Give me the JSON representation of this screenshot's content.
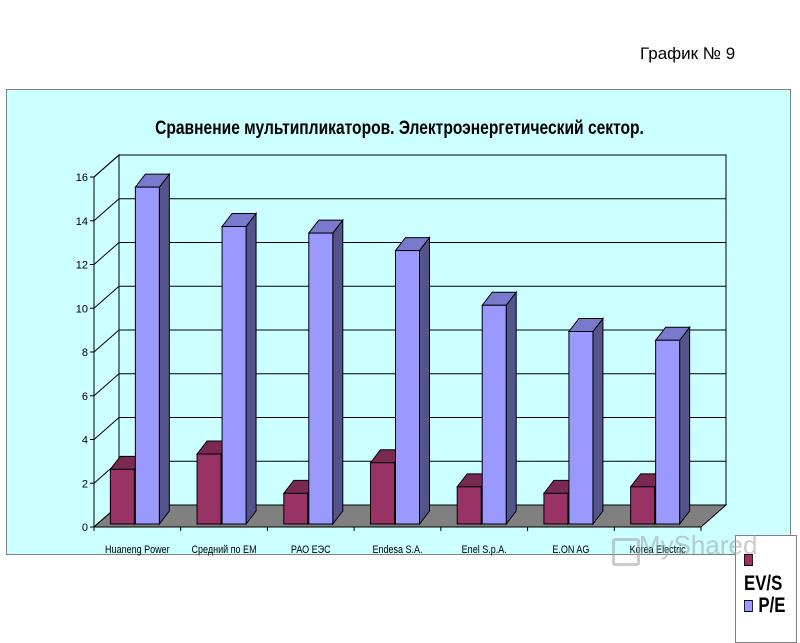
{
  "doc_label": "График № 9",
  "watermark": "MyShared",
  "chart_data": {
    "type": "bar",
    "title": "Сравнение мультипликаторов. Электроэнергетический сектор.",
    "categories": [
      "Huaneng Power",
      "Средний по EM",
      "РАО ЕЭС",
      "Endesa S.A.",
      "Enel S.p.A.",
      "E.ON AG",
      "Korea Electric"
    ],
    "series": [
      {
        "name": "EV/S",
        "color": "#993366",
        "values": [
          2.5,
          3.2,
          1.4,
          2.8,
          1.7,
          1.4,
          1.7
        ]
      },
      {
        "name": "P/E",
        "color": "#9999ff",
        "values": [
          15.4,
          13.6,
          13.3,
          12.5,
          10.0,
          8.8,
          8.4
        ]
      }
    ],
    "ylim": [
      0,
      16
    ],
    "yticks": [
      "0",
      "2",
      "4",
      "6",
      "8",
      "10",
      "12",
      "14",
      "16"
    ],
    "grid": true,
    "legend_position": "right",
    "plot_bg": "#ccffff",
    "floor_color": "#808080"
  }
}
